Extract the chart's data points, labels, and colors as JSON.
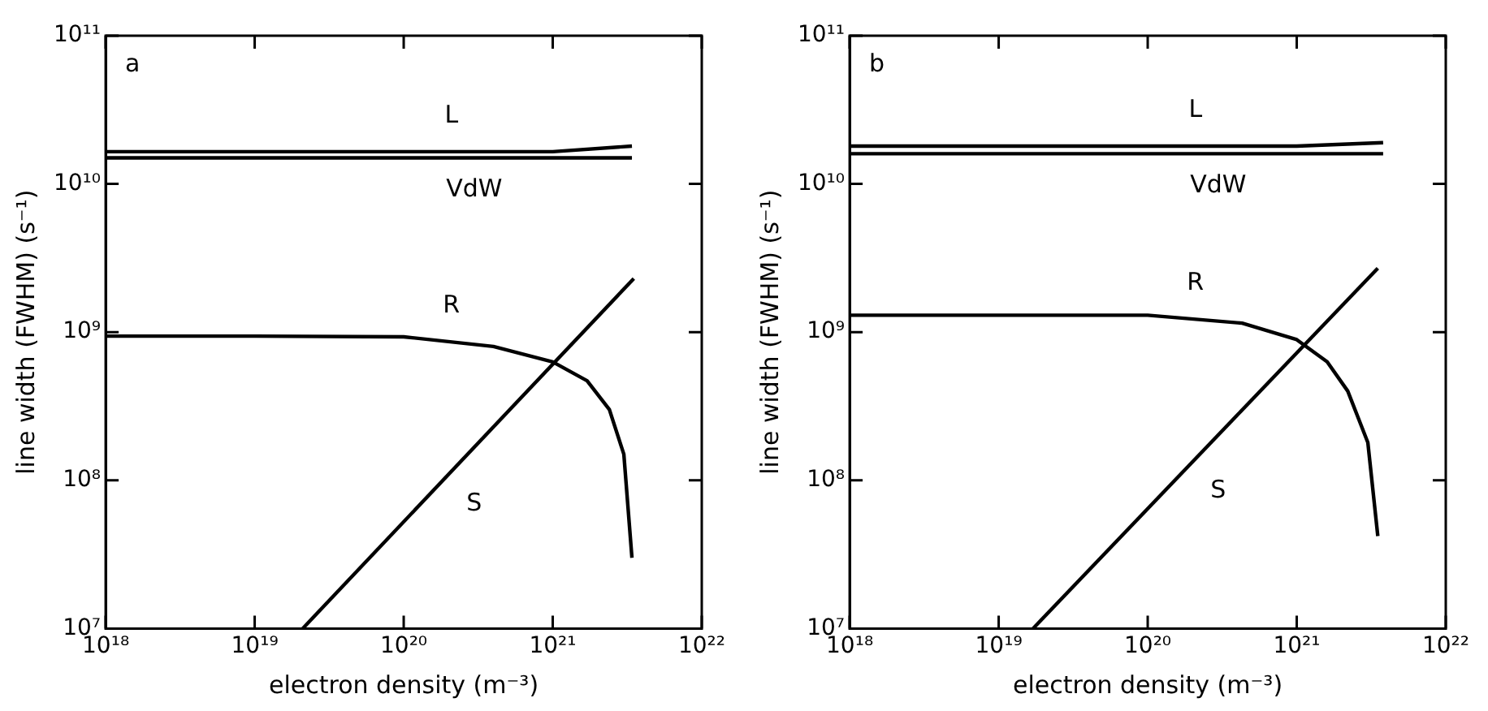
{
  "chart_data": [
    {
      "type": "line",
      "xlabel": "electron density (m⁻³)",
      "ylabel": "line width (FWHM) (s⁻¹)",
      "log": "xy",
      "xlim": [
        1e+18,
        1e+22
      ],
      "ylim": [
        10000000.0,
        100000000000.0
      ],
      "xticks": [
        {
          "value": 1e+18,
          "label": "10¹⁸"
        },
        {
          "value": 1e+19,
          "label": "10¹⁹"
        },
        {
          "value": 1e+20,
          "label": "10²⁰"
        },
        {
          "value": 1e+21,
          "label": "10²¹"
        },
        {
          "value": 1e+22,
          "label": "10²²"
        }
      ],
      "yticks": [
        {
          "value": 10000000.0,
          "label": "10⁷"
        },
        {
          "value": 100000000.0,
          "label": "10⁸"
        },
        {
          "value": 1000000000.0,
          "label": "10⁹"
        },
        {
          "value": 10000000000.0,
          "label": "10¹⁰"
        },
        {
          "value": 100000000000.0,
          "label": "10¹¹"
        }
      ],
      "marker": "none",
      "line_style": "solid",
      "legend": false,
      "series": [
        {
          "name": "L",
          "color": "#000000",
          "x": [
            1e+18,
            1e+20,
            1e+21,
            3.4e+21
          ],
          "values": [
            16500000000.0,
            16500000000.0,
            16500000000.0,
            18000000000.0
          ]
        },
        {
          "name": "VdW",
          "color": "#000000",
          "x": [
            1e+18,
            1e+20,
            1e+21,
            3.4e+21
          ],
          "values": [
            15000000000.0,
            15000000000.0,
            15000000000.0,
            15000000000.0
          ]
        },
        {
          "name": "R",
          "color": "#000000",
          "x": [
            1e+18,
            1e+19,
            1e+20,
            4e+20,
            1e+21,
            1.7e+21,
            2.4e+21,
            3e+21,
            3.4e+21
          ],
          "values": [
            940000000.0,
            940000000.0,
            930000000.0,
            800000000.0,
            630000000.0,
            470000000.0,
            300000000.0,
            150000000.0,
            30000000.0
          ]
        },
        {
          "name": "S",
          "color": "#000000",
          "x": [
            2.1e+19,
            3.5e+21
          ],
          "values": [
            10000000.0,
            2300000000.0
          ]
        }
      ],
      "annotations": [
        "a"
      ]
    },
    {
      "type": "line",
      "xlabel": "electron density (m⁻³)",
      "ylabel": "line width (FWHM) (s⁻¹)",
      "log": "xy",
      "xlim": [
        1e+18,
        1e+22
      ],
      "ylim": [
        10000000.0,
        100000000000.0
      ],
      "xticks": [
        {
          "value": 1e+18,
          "label": "10¹⁸"
        },
        {
          "value": 1e+19,
          "label": "10¹⁹"
        },
        {
          "value": 1e+20,
          "label": "10²⁰"
        },
        {
          "value": 1e+21,
          "label": "10²¹"
        },
        {
          "value": 1e+22,
          "label": "10²²"
        }
      ],
      "yticks": [
        {
          "value": 10000000.0,
          "label": "10⁷"
        },
        {
          "value": 100000000.0,
          "label": "10⁸"
        },
        {
          "value": 1000000000.0,
          "label": "10⁹"
        },
        {
          "value": 10000000000.0,
          "label": "10¹⁰"
        },
        {
          "value": 100000000000.0,
          "label": "10¹¹"
        }
      ],
      "marker": "none",
      "line_style": "solid",
      "legend": false,
      "series": [
        {
          "name": "L",
          "color": "#000000",
          "x": [
            1e+18,
            1e+20,
            1e+21,
            3.8e+21
          ],
          "values": [
            18000000000.0,
            18000000000.0,
            18000000000.0,
            19000000000.0
          ]
        },
        {
          "name": "VdW",
          "color": "#000000",
          "x": [
            1e+18,
            1e+20,
            1e+21,
            3.8e+21
          ],
          "values": [
            16000000000.0,
            16000000000.0,
            16000000000.0,
            16000000000.0
          ]
        },
        {
          "name": "R",
          "color": "#000000",
          "x": [
            1e+18,
            1e+19,
            1e+20,
            4.3e+20,
            1e+21,
            1.6e+21,
            2.2e+21,
            3e+21,
            3.5e+21
          ],
          "values": [
            1300000000.0,
            1300000000.0,
            1300000000.0,
            1150000000.0,
            890000000.0,
            630000000.0,
            400000000.0,
            180000000.0,
            42000000.0
          ]
        },
        {
          "name": "S",
          "color": "#000000",
          "x": [
            1.7e+19,
            3.5e+21
          ],
          "values": [
            10000000.0,
            2700000000.0
          ]
        }
      ],
      "annotations": [
        "b"
      ]
    }
  ]
}
